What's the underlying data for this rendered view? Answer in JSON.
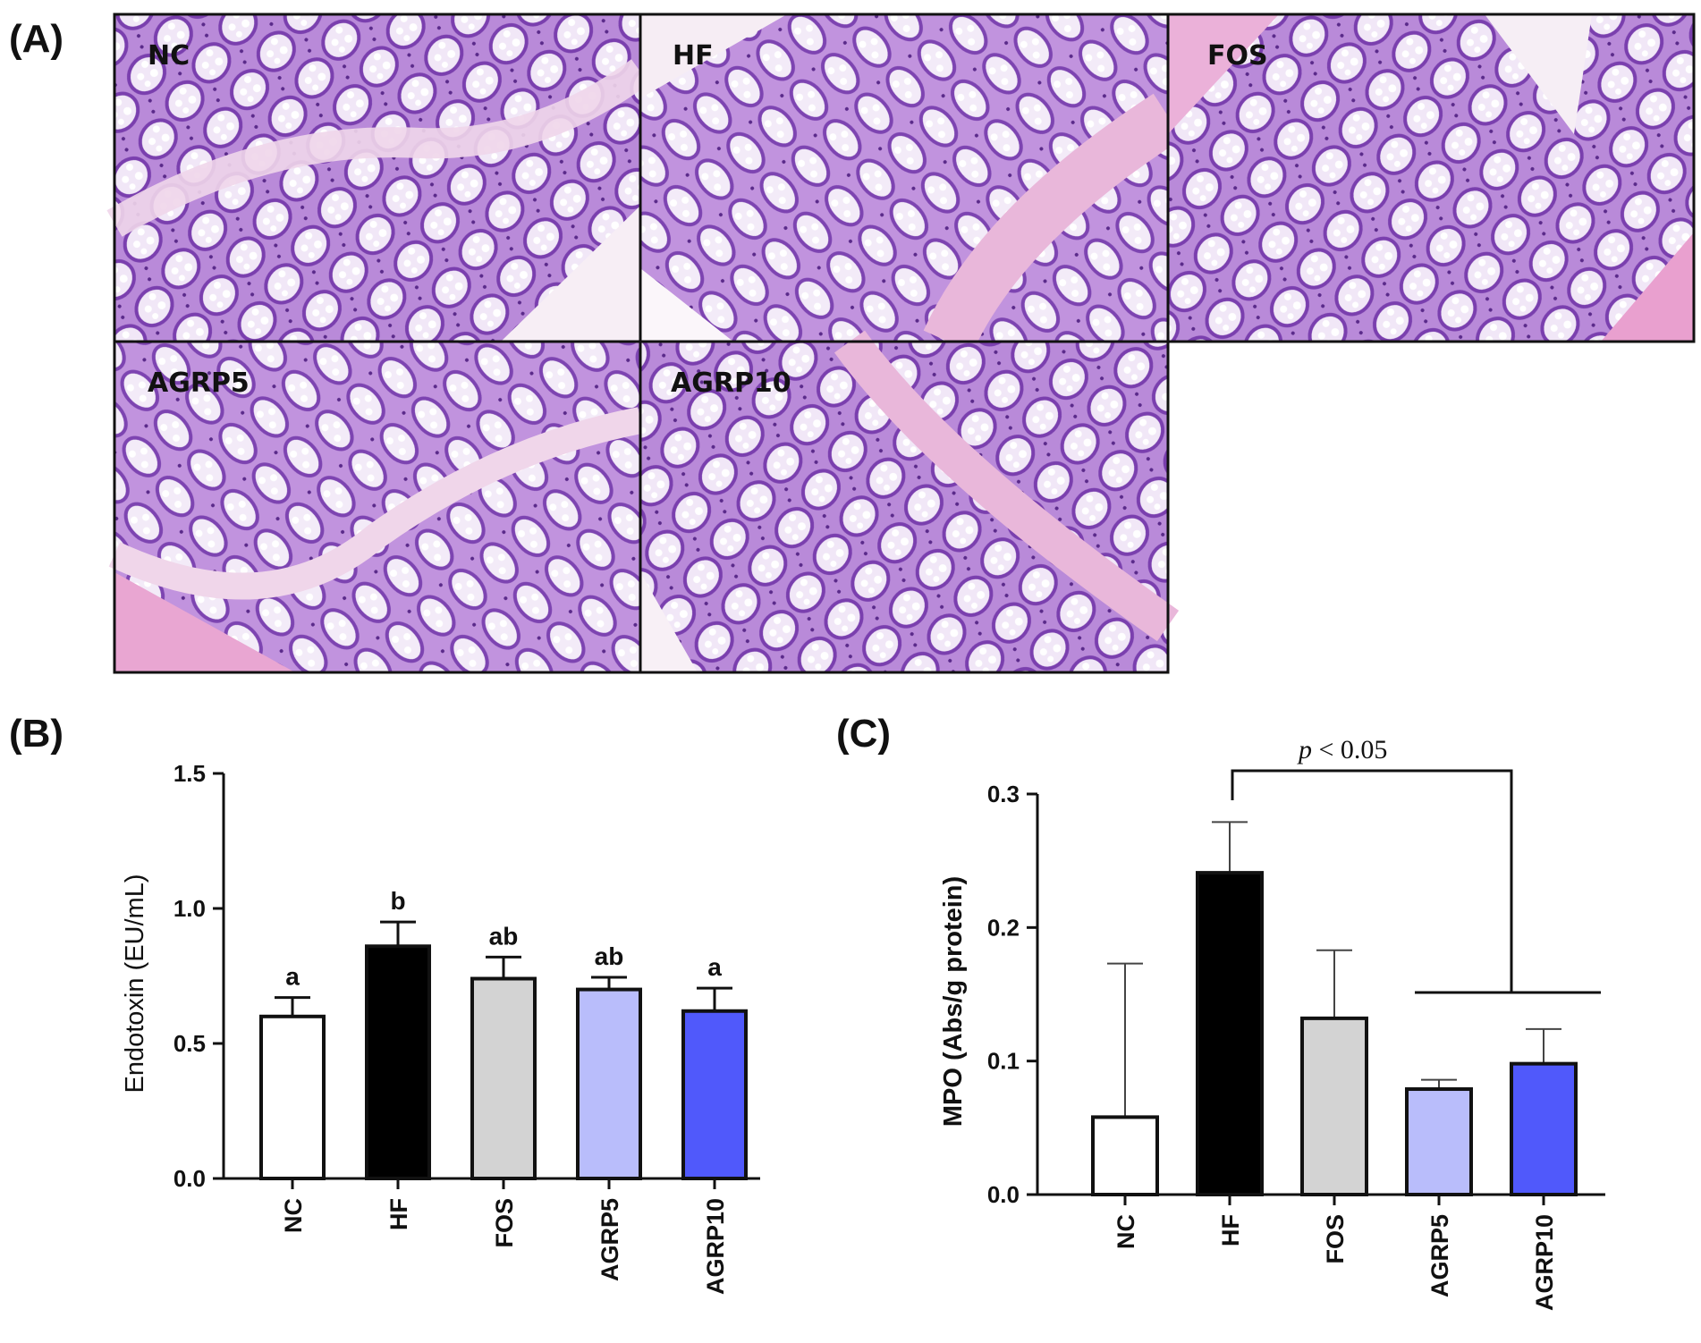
{
  "panels": {
    "A": {
      "label": "(A)",
      "images": [
        {
          "label": "NC"
        },
        {
          "label": "HF"
        },
        {
          "label": "FOS"
        },
        {
          "label": "AGRP5"
        },
        {
          "label": "AGRP10"
        }
      ]
    },
    "B": {
      "label": "(B)"
    },
    "C": {
      "label": "(C)"
    }
  },
  "colors": {
    "NC": "#ffffff",
    "HF": "#000000",
    "FOS": "#d3d3d3",
    "AGRP5": "#b9bdfb",
    "AGRP10": "#5059fb",
    "tissue_pink": "#e8a6d6",
    "tissue_purple": "#9a5fc2"
  },
  "chart_data": [
    {
      "type": "bar",
      "panel": "B",
      "categories": [
        "NC",
        "HF",
        "FOS",
        "AGRP5",
        "AGRP10"
      ],
      "values": [
        0.6,
        0.86,
        0.74,
        0.7,
        0.62
      ],
      "errors": [
        0.07,
        0.09,
        0.08,
        0.045,
        0.085
      ],
      "significance_letters": [
        "a",
        "b",
        "ab",
        "ab",
        "a"
      ],
      "ylabel": "Endotoxin (EU/mL)",
      "ylim": [
        0,
        1.5
      ],
      "yticks": [
        "0.0",
        "0.5",
        "1.0",
        "1.5"
      ],
      "ytick_values": [
        0,
        0.5,
        1.0,
        1.5
      ]
    },
    {
      "type": "bar",
      "panel": "C",
      "categories": [
        "NC",
        "HF",
        "FOS",
        "AGRP5",
        "AGRP10"
      ],
      "values": [
        0.058,
        0.241,
        0.132,
        0.079,
        0.098
      ],
      "errors": [
        0.115,
        0.038,
        0.051,
        0.007,
        0.026
      ],
      "ylabel": "MPO (Abs/g protein)",
      "ylim": [
        0,
        0.3
      ],
      "yticks": [
        "0.0",
        "0.1",
        "0.2",
        "0.3"
      ],
      "ytick_values": [
        0,
        0.1,
        0.2,
        0.3
      ],
      "annotation": {
        "p_symbol": "p",
        "p_text": " < 0.05"
      }
    }
  ]
}
